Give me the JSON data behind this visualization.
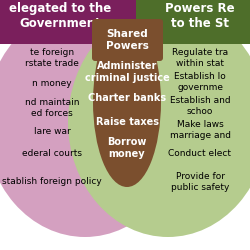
{
  "left_title": "elegated to the\nGovernment",
  "right_title": "Powers Re\nto the St",
  "center_title": "Shared\nPowers",
  "left_color": "#d4a0c0",
  "right_color": "#b5cc8e",
  "center_color": "#7b4f2e",
  "left_title_bg": "#7a1f5c",
  "right_title_bg": "#4e6e2a",
  "left_items": [
    "te foreign\nrstate trade",
    "n money",
    "nd maintain\ned forces",
    "lare war",
    "ederal courts",
    "stablish foreign policy"
  ],
  "right_items": [
    "Regulate tra\nwithin stat",
    "Establish lo\ngovernme",
    "Establish and\nschoo",
    "Make laws\nmarriage and",
    "Conduct elect",
    "Provide for\npublic safety"
  ],
  "center_items": [
    "Administer\ncriminal justice",
    "Charter banks",
    "Raise taxes",
    "Borrow\nmoney"
  ],
  "figsize": [
    2.5,
    2.5
  ],
  "dpi": 100
}
